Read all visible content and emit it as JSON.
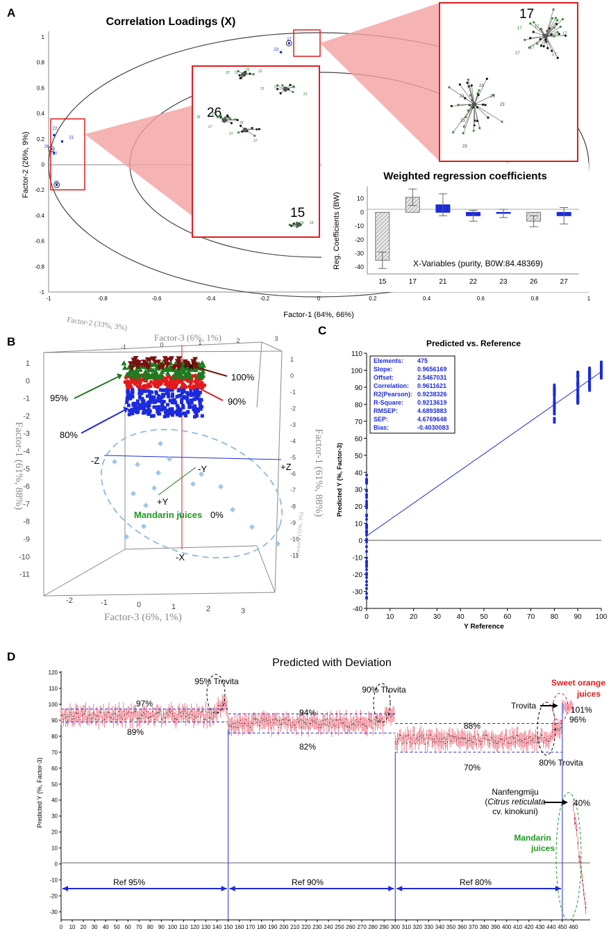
{
  "panel_labels": {
    "a": "A",
    "b": "B",
    "c": "C",
    "d": "D"
  },
  "chart_data": [
    {
      "id": "A",
      "type": "scatter",
      "title": "Correlation Loadings (X)",
      "xlabel": "Factor-1 (64%, 66%)",
      "ylabel": "Factor-2 (26%, 9%)",
      "xlim": [
        -1,
        1
      ],
      "ylim": [
        -1,
        1
      ],
      "xticks": [
        "-1",
        "-0.8",
        "-0.6",
        "-0.4",
        "-0.2",
        "0",
        "0.2",
        "0.4",
        "0.6",
        "0.8",
        "1"
      ],
      "yticks": [
        "1",
        "0.8",
        "0.6",
        "0.4",
        "0.2",
        "0",
        "-0.2",
        "-0.4",
        "-0.6",
        "-0.8",
        "-1"
      ],
      "points": [
        {
          "label": "17",
          "x": -0.11,
          "y": 0.95
        },
        {
          "label": "23",
          "x": -0.14,
          "y": 0.88
        },
        {
          "label": "21",
          "x": -0.95,
          "y": 0.18
        },
        {
          "label": "22",
          "x": -0.98,
          "y": 0.23
        },
        {
          "label": "26",
          "x": -0.99,
          "y": 0.12
        },
        {
          "label": "27",
          "x": -0.98,
          "y": 0.09
        },
        {
          "label": "15",
          "x": -0.97,
          "y": -0.16
        }
      ],
      "zoom_labels": {
        "z17": "17",
        "z26": "26",
        "z15": "15"
      },
      "inset_labels": {
        "z17": [
          "17",
          "17",
          "17",
          "17",
          "17",
          "17",
          "23",
          "23",
          "23",
          "23",
          "23",
          "23"
        ],
        "z26": [
          "22",
          "22",
          "22",
          "22",
          "21",
          "21",
          "21",
          "21",
          "26",
          "26",
          "27",
          "27",
          "26",
          "27"
        ],
        "z15": [
          "15",
          "15",
          "15"
        ]
      },
      "inset": {
        "title": "Weighted regression coefficients",
        "ylabel": "Reg. Coefficients (BW)",
        "annotation": "X-Variables (purity, B0W:84.48369)",
        "yticks": [
          "10",
          "0",
          "-10",
          "-20",
          "-30",
          "-40"
        ],
        "categories": [
          "15",
          "17",
          "21",
          "22",
          "23",
          "26",
          "27"
        ],
        "values": [
          -35,
          11,
          5.5,
          -2.5,
          -0.8,
          -6.5,
          -2.5
        ],
        "err": [
          6,
          6,
          8,
          4,
          3,
          4,
          6
        ],
        "patterned": [
          true,
          true,
          false,
          false,
          false,
          true,
          false
        ]
      }
    },
    {
      "id": "B",
      "type": "scatter",
      "title": "",
      "axis_labels": {
        "factor1_right": "Factor-1 (61%, 88%)",
        "factor1_left": "Factor-1 (61%, 88%)",
        "factor3_bottom": "Factor-3 (6%, 1%)",
        "factor3_top": "Factor-3 (6%, 1%)",
        "factor2_top": "Factor-2 (33%, 3%)",
        "factor2_side": "Factor-2 (33%, 3%)"
      },
      "yticks_left": [
        "1",
        "0",
        "-1",
        "-2",
        "-3",
        "-4",
        "-5",
        "-6",
        "-7",
        "-8",
        "-9",
        "-10",
        "-11"
      ],
      "yticks_right": [
        "1",
        "0",
        "-1",
        "-2",
        "-3",
        "-4",
        "-5",
        "-6",
        "-7",
        "-8",
        "-9",
        "-10",
        "-11"
      ],
      "xticks_bottom": [
        "-2",
        "-1",
        "0",
        "1",
        "2",
        "3"
      ],
      "xticks_top": [
        "-1",
        "0",
        "1",
        "2",
        "3"
      ],
      "groups": [
        {
          "name": "100%",
          "color": "#7b0f0f",
          "marker": "triangle-down"
        },
        {
          "name": "95%",
          "color": "#1f7a1f",
          "marker": "triangle-up"
        },
        {
          "name": "90%",
          "color": "#e31a1c",
          "marker": "circle"
        },
        {
          "name": "80%",
          "color": "#1c2bdc",
          "marker": "square"
        },
        {
          "name": "0%",
          "color": "#9ec7ea",
          "marker": "diamond"
        }
      ],
      "annotations": {
        "mandarin": "Mandarin juices",
        "zero": "0%",
        "px": "+X",
        "nx": "-X",
        "py": "+Y",
        "ny": "-Y",
        "pz": "+Z",
        "nz": "-Z"
      }
    },
    {
      "id": "C",
      "type": "scatter",
      "title": "Predicted vs. Reference",
      "xlabel": "Y Reference",
      "ylabel": "Predicted Y (%, Factor-3)",
      "xlim": [
        0,
        100
      ],
      "ylim": [
        -40,
        110
      ],
      "xticks": [
        "0",
        "10",
        "20",
        "30",
        "40",
        "50",
        "60",
        "70",
        "80",
        "90",
        "100"
      ],
      "yticks": [
        "110",
        "100",
        "90",
        "80",
        "70",
        "60",
        "50",
        "40",
        "30",
        "20",
        "10",
        "0",
        "-10",
        "-20",
        "-30",
        "-40"
      ],
      "fit_line": {
        "slope": 0.9656169,
        "offset": 2.5467031
      },
      "stats": [
        [
          "Elements:",
          "475"
        ],
        [
          "Slope:",
          "0.9656169"
        ],
        [
          "Offset:",
          "2.5467031"
        ],
        [
          "Correlation:",
          "0.9611621"
        ],
        [
          "R2(Pearson):",
          "0.9238326"
        ],
        [
          "R-Square:",
          "0.9213619"
        ],
        [
          "RMSEP:",
          "4.6893883"
        ],
        [
          "SEP:",
          "4.6769648"
        ],
        [
          "Bias:",
          "-0.4030083"
        ]
      ],
      "groups": [
        {
          "x": 0,
          "y_range": [
            -35,
            40
          ]
        },
        {
          "x": 80,
          "y_range": [
            69,
            92
          ]
        },
        {
          "x": 90,
          "y_range": [
            80,
            99
          ]
        },
        {
          "x": 95,
          "y_range": [
            88,
            102
          ]
        },
        {
          "x": 100,
          "y_range": [
            95,
            105
          ]
        }
      ]
    },
    {
      "id": "D",
      "type": "line",
      "title": "Predicted with Deviation",
      "ylabel": "Predicted Y (%, Factor-3)",
      "xlim": [
        0,
        475
      ],
      "ylim": [
        -35,
        120
      ],
      "xticks": [
        "0",
        "10",
        "20",
        "30",
        "40",
        "50",
        "60",
        "70",
        "80",
        "90",
        "100",
        "110",
        "120",
        "130",
        "140",
        "150",
        "160",
        "170",
        "180",
        "190",
        "200",
        "210",
        "220",
        "230",
        "240",
        "250",
        "260",
        "270",
        "280",
        "290",
        "300",
        "310",
        "320",
        "330",
        "340",
        "350",
        "360",
        "370",
        "380",
        "390",
        "400",
        "410",
        "420",
        "430",
        "440",
        "450",
        "460"
      ],
      "yticks": [
        "120",
        "110",
        "100",
        "90",
        "80",
        "70",
        "60",
        "50",
        "40",
        "30",
        "20",
        "10",
        "0",
        "-10",
        "-20",
        "-30"
      ],
      "segments": [
        {
          "x": [
            0,
            150
          ],
          "mean": 93,
          "hi": 97,
          "lo": 89
        },
        {
          "x": [
            150,
            300
          ],
          "mean": 88,
          "hi": 94,
          "lo": 82
        },
        {
          "x": [
            300,
            450
          ],
          "mean": 78,
          "hi": 88,
          "lo": 70
        },
        {
          "x": [
            450,
            475
          ],
          "mean": 98
        }
      ],
      "labels": {
        "ref95": "Ref 95%",
        "ref90": "Ref 90%",
        "ref80": "Ref 80%",
        "t95": "95% Trovita",
        "t90": "90% Trovita",
        "t80": "80% Trovita",
        "trovita": "Trovita",
        "p97": "97%",
        "p89": "89%",
        "p94": "94%",
        "p82": "82%",
        "p88": "88%",
        "p70": "70%",
        "p101": "101%",
        "p96": "96%",
        "p40": "40%",
        "sweet1": "Sweet orange",
        "sweet2": "juices",
        "nan1": "Nanfengmiju",
        "nan2": "Citrus reticulata",
        "nan3": "cv. kinokuni",
        "mand1": "Mandarin",
        "mand2": "juices"
      }
    }
  ]
}
